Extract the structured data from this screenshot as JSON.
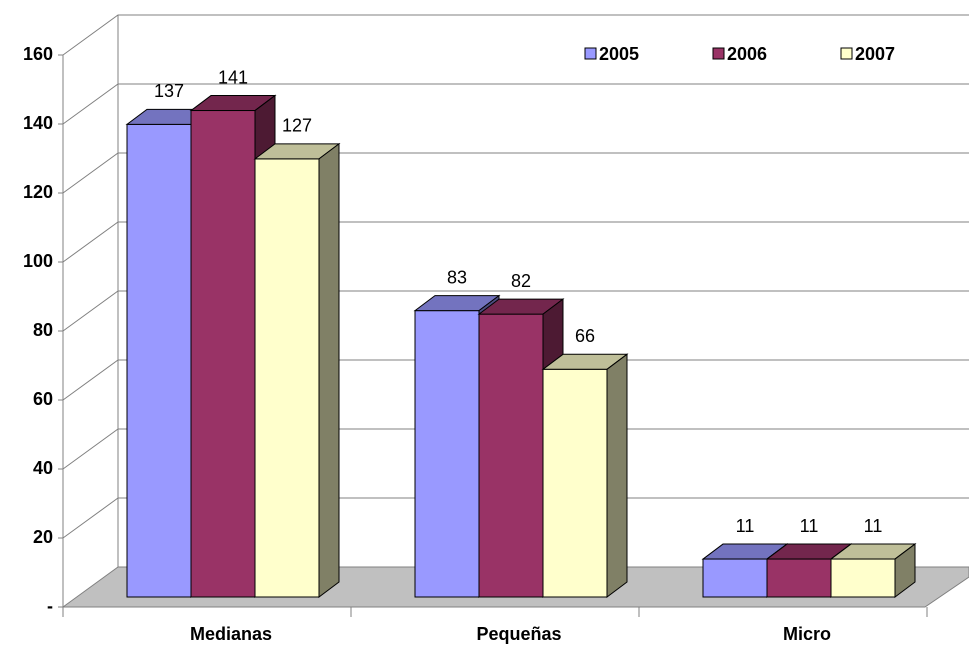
{
  "chart_data": {
    "type": "bar3d",
    "categories": [
      "Medianas",
      "Pequeñas",
      "Micro"
    ],
    "series": [
      {
        "name": "2005",
        "color": "#9999ff",
        "values": [
          137,
          83,
          11
        ]
      },
      {
        "name": "2006",
        "color": "#993366",
        "values": [
          141,
          82,
          11
        ]
      },
      {
        "name": "2007",
        "color": "#ffffcc",
        "values": [
          127,
          66,
          11
        ]
      }
    ],
    "ylim": [
      0,
      160
    ],
    "yticks": [
      {
        "value": 0,
        "label": "-"
      },
      20,
      40,
      60,
      80,
      100,
      120,
      140,
      160
    ],
    "grid": true,
    "legend": "top-right"
  }
}
